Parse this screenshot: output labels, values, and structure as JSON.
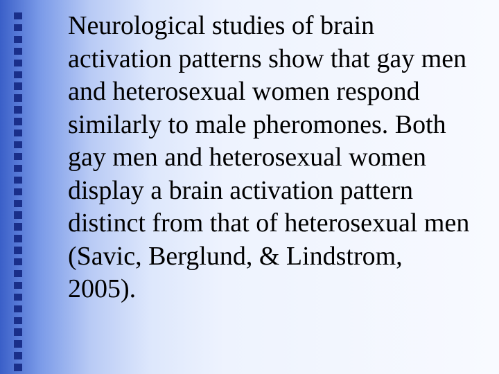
{
  "slide": {
    "body_text": "Neurological studies of brain activation patterns show that gay men and heterosexual women respond similarly to male pheromones. Both gay men and heterosexual women display a brain activation pattern distinct from that of heterosexual men (Savic, Berglund, & Lindstrom, 2005).",
    "bullet_count": 31,
    "bullet_color": "#1a2f8a",
    "background_gradient": {
      "from": "#3a5fc8",
      "to": "#f8faff"
    },
    "text_color": "#000000",
    "font_family": "Times New Roman",
    "body_fontsize": 38
  }
}
